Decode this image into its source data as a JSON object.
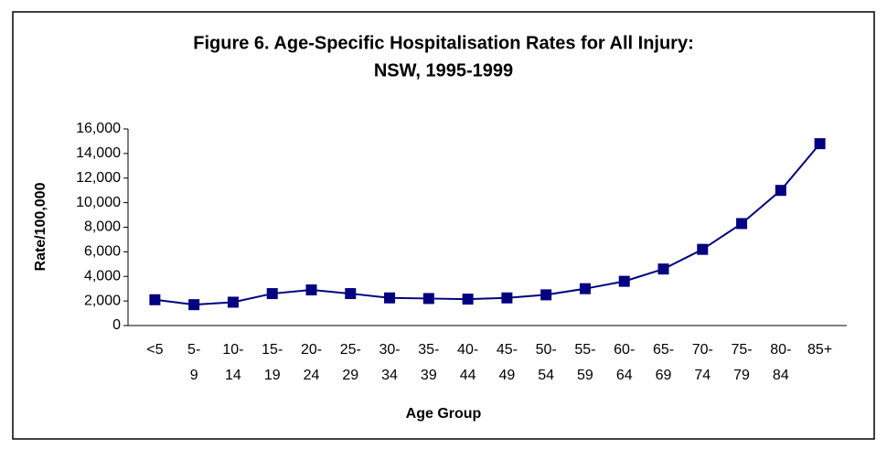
{
  "chart_data": {
    "type": "line",
    "title": "Figure 6.  Age-Specific Hospitalisation Rates for All Injury:",
    "subtitle": "NSW, 1995-1999",
    "x_label": "Age Group",
    "y_label": "Rate/100,000",
    "categories": [
      "<5",
      "5-9",
      "10-14",
      "15-19",
      "20-24",
      "25-29",
      "30-34",
      "35-39",
      "40-44",
      "45-49",
      "50-54",
      "55-59",
      "60-64",
      "65-69",
      "70-74",
      "75-79",
      "80-84",
      "85+"
    ],
    "values": [
      2100,
      1700,
      1900,
      2600,
      2900,
      2600,
      2250,
      2200,
      2150,
      2250,
      2500,
      3000,
      3600,
      4600,
      6200,
      8300,
      11000,
      14800
    ],
    "color": "#000080",
    "ylim": [
      0,
      16000
    ],
    "yticks": [
      0,
      {
        "value": 2000,
        "label": "2,000"
      },
      {
        "value": 4000,
        "label": "4,000"
      },
      {
        "value": 6000,
        "label": "6,000"
      },
      {
        "value": 8000,
        "label": "8,000"
      },
      {
        "value": 10000,
        "label": "10,000"
      },
      {
        "value": 12000,
        "label": "12,000"
      },
      {
        "value": 14000,
        "label": "14,000"
      },
      {
        "value": 16000,
        "label": "16,000"
      }
    ],
    "grid": false
  }
}
